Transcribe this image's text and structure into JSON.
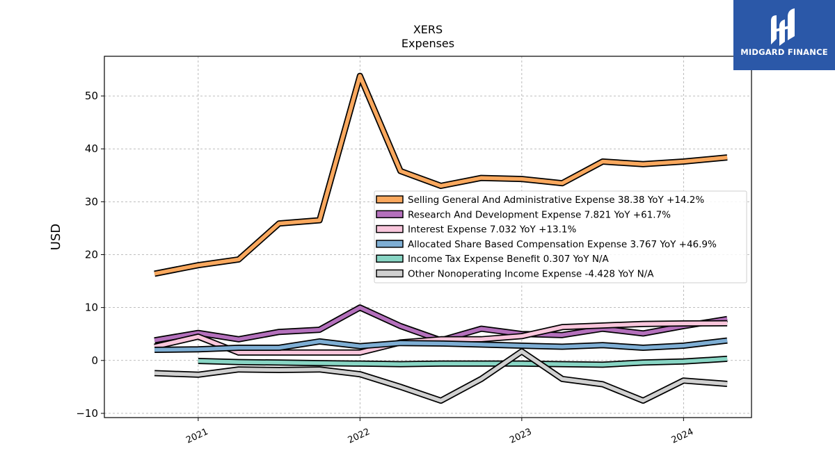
{
  "chart_data": {
    "type": "line",
    "title": "XERS",
    "subtitle": "Expenses",
    "ylabel": "USD",
    "xlabel": "",
    "ylim": [
      -10.8,
      57.5
    ],
    "yticks": [
      -10,
      0,
      10,
      20,
      30,
      40,
      50
    ],
    "xticks": [
      {
        "label": "2021",
        "value": 2021.0
      },
      {
        "label": "2022",
        "value": 2022.0
      },
      {
        "label": "2023",
        "value": 2023.0
      },
      {
        "label": "2024",
        "value": 2024.0
      }
    ],
    "xlim": [
      2020.42,
      2024.42
    ],
    "grid": true,
    "legend_position": "center-right",
    "x": [
      2020.73,
      2021.0,
      2021.25,
      2021.5,
      2021.75,
      2022.0,
      2022.25,
      2022.5,
      2022.75,
      2023.0,
      2023.25,
      2023.5,
      2023.75,
      2024.0,
      2024.27
    ],
    "series": [
      {
        "name": "Selling General And Administrative Expense",
        "legend_label": "Selling General And Administrative Expense  38.38 YoY +14.2%",
        "color": "#f9a85e",
        "values": [
          16.4,
          18.0,
          19.1,
          25.9,
          26.5,
          53.8,
          35.8,
          33.0,
          34.5,
          34.3,
          33.5,
          37.6,
          37.1,
          37.6,
          38.38
        ]
      },
      {
        "name": "Research And Development Expense",
        "legend_label": "Research And Development Expense  7.821 YoY +61.7%",
        "color": "#b470bc",
        "values": [
          3.8,
          5.2,
          4.0,
          5.4,
          5.8,
          10.0,
          6.5,
          3.8,
          6.0,
          5.0,
          4.8,
          6.0,
          5.1,
          6.5,
          7.821
        ]
      },
      {
        "name": "Interest Expense",
        "legend_label": "Interest Expense  7.032 YoY +13.1%",
        "color": "#f9c6dc",
        "values": [
          2.6,
          4.5,
          1.5,
          1.5,
          1.5,
          1.5,
          3.4,
          4.0,
          4.0,
          4.6,
          6.3,
          6.6,
          6.9,
          7.0,
          7.032
        ]
      },
      {
        "name": "Allocated Share Based Compensation Expense",
        "legend_label": "Allocated Share Based Compensation Expense  3.767 YoY +46.9%",
        "color": "#7eaed4",
        "values": [
          2.0,
          2.1,
          2.4,
          2.4,
          3.6,
          2.7,
          3.3,
          3.2,
          3.0,
          2.8,
          2.6,
          2.9,
          2.4,
          2.8,
          3.767
        ]
      },
      {
        "name": "Income Tax Expense Benefit",
        "legend_label": "Income Tax Expense Benefit  0.307 YoY N/A",
        "color": "#88d5c4",
        "values": [
          null,
          -0.1,
          -0.3,
          -0.4,
          -0.5,
          -0.6,
          -0.7,
          -0.6,
          -0.6,
          -0.6,
          -0.7,
          -0.8,
          -0.4,
          -0.2,
          0.307
        ]
      },
      {
        "name": "Other Nonoperating Income Expense",
        "legend_label": "Other Nonoperating Income Expense  -4.428 YoY N/A",
        "color": "#d0d0d0",
        "values": [
          -2.4,
          -2.7,
          -1.7,
          -1.8,
          -1.7,
          -2.6,
          -5.0,
          -7.6,
          -3.5,
          1.7,
          -3.5,
          -4.5,
          -7.6,
          -3.8,
          -4.428
        ]
      }
    ]
  },
  "logo": {
    "text": "MIDGARD FINANCE",
    "bg_color": "#2b58a8"
  }
}
